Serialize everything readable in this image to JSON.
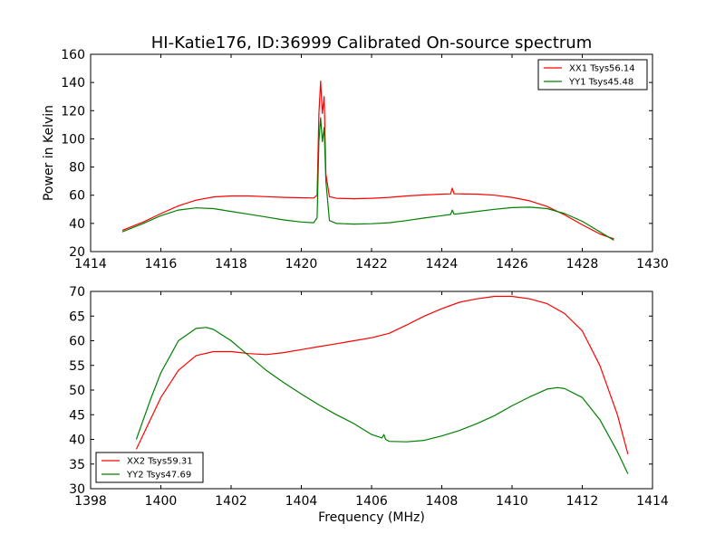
{
  "colors": {
    "xx": "#ff0000",
    "yy": "#008000",
    "frame": "#000000",
    "background": "#ffffff"
  },
  "chart_data": [
    {
      "type": "line",
      "title": "HI-Katie176, ID:36999 Calibrated On-source spectrum",
      "xlabel": "",
      "ylabel": "Power in Kelvin",
      "xlim": [
        1414,
        1430
      ],
      "ylim": [
        20,
        160
      ],
      "xticks": [
        1414,
        1416,
        1418,
        1420,
        1422,
        1424,
        1426,
        1428,
        1430
      ],
      "yticks": [
        20,
        40,
        60,
        80,
        100,
        120,
        140,
        160
      ],
      "grid": false,
      "legend_position": "top-right",
      "series": [
        {
          "name": "XX1 Tsys56.14",
          "color": "#ff0000",
          "points": [
            [
              1414.9,
              35
            ],
            [
              1415.5,
              41
            ],
            [
              1416,
              47
            ],
            [
              1416.5,
              52.5
            ],
            [
              1417,
              56.5
            ],
            [
              1417.5,
              58.8
            ],
            [
              1418,
              59.5
            ],
            [
              1418.5,
              59.5
            ],
            [
              1419,
              59
            ],
            [
              1419.5,
              58.5
            ],
            [
              1420,
              58.2
            ],
            [
              1420.35,
              58
            ],
            [
              1420.45,
              60
            ],
            [
              1420.5,
              118
            ],
            [
              1420.55,
              141
            ],
            [
              1420.6,
              118
            ],
            [
              1420.65,
              130
            ],
            [
              1420.7,
              75
            ],
            [
              1420.8,
              59
            ],
            [
              1421,
              57.8
            ],
            [
              1421.5,
              57.5
            ],
            [
              1422,
              57.8
            ],
            [
              1422.5,
              58.5
            ],
            [
              1423,
              59.5
            ],
            [
              1423.5,
              60.2
            ],
            [
              1424,
              60.8
            ],
            [
              1424.25,
              61
            ],
            [
              1424.3,
              65
            ],
            [
              1424.35,
              61
            ],
            [
              1424.5,
              61
            ],
            [
              1425,
              60.8
            ],
            [
              1425.5,
              60
            ],
            [
              1426,
              58.5
            ],
            [
              1426.5,
              56
            ],
            [
              1427,
              52
            ],
            [
              1427.5,
              46
            ],
            [
              1428,
              39
            ],
            [
              1428.5,
              32.5
            ],
            [
              1428.9,
              29
            ]
          ]
        },
        {
          "name": "YY1 Tsys45.48",
          "color": "#008000",
          "points": [
            [
              1414.9,
              34
            ],
            [
              1415.5,
              40
            ],
            [
              1416,
              45.5
            ],
            [
              1416.5,
              49.5
            ],
            [
              1417,
              51
            ],
            [
              1417.5,
              50.5
            ],
            [
              1418,
              48.5
            ],
            [
              1418.5,
              46.5
            ],
            [
              1419,
              44.5
            ],
            [
              1419.5,
              42.5
            ],
            [
              1420,
              41
            ],
            [
              1420.35,
              40.5
            ],
            [
              1420.45,
              44
            ],
            [
              1420.5,
              98
            ],
            [
              1420.55,
              115
            ],
            [
              1420.6,
              98
            ],
            [
              1420.65,
              108
            ],
            [
              1420.7,
              70
            ],
            [
              1420.8,
              42
            ],
            [
              1421,
              40
            ],
            [
              1421.5,
              39.5
            ],
            [
              1422,
              39.8
            ],
            [
              1422.5,
              40.5
            ],
            [
              1423,
              42
            ],
            [
              1423.5,
              43.8
            ],
            [
              1424,
              45.5
            ],
            [
              1424.25,
              46.3
            ],
            [
              1424.3,
              49.5
            ],
            [
              1424.35,
              46.5
            ],
            [
              1424.5,
              47
            ],
            [
              1425,
              48.5
            ],
            [
              1425.5,
              50
            ],
            [
              1426,
              51.2
            ],
            [
              1426.5,
              51.5
            ],
            [
              1427,
              50.5
            ],
            [
              1427.5,
              47
            ],
            [
              1428,
              41.5
            ],
            [
              1428.5,
              34
            ],
            [
              1428.9,
              28
            ]
          ]
        }
      ]
    },
    {
      "type": "line",
      "title": "",
      "xlabel": "Frequency (MHz)",
      "ylabel": "",
      "xlim": [
        1398,
        1414
      ],
      "ylim": [
        30,
        70
      ],
      "xticks": [
        1398,
        1400,
        1402,
        1404,
        1406,
        1408,
        1410,
        1412,
        1414
      ],
      "yticks": [
        30,
        35,
        40,
        45,
        50,
        55,
        60,
        65,
        70
      ],
      "grid": false,
      "legend_position": "bottom-left",
      "series": [
        {
          "name": "XX2 Tsys59.31",
          "color": "#ff0000",
          "points": [
            [
              1399.3,
              38
            ],
            [
              1399.7,
              44
            ],
            [
              1400,
              48.5
            ],
            [
              1400.5,
              54
            ],
            [
              1401,
              57
            ],
            [
              1401.5,
              57.8
            ],
            [
              1402,
              57.8
            ],
            [
              1402.5,
              57.4
            ],
            [
              1403,
              57.2
            ],
            [
              1403.5,
              57.6
            ],
            [
              1404,
              58.2
            ],
            [
              1404.5,
              58.8
            ],
            [
              1405,
              59.4
            ],
            [
              1405.5,
              60
            ],
            [
              1406,
              60.6
            ],
            [
              1406.5,
              61.5
            ],
            [
              1407,
              63.2
            ],
            [
              1407.5,
              65
            ],
            [
              1408,
              66.5
            ],
            [
              1408.5,
              67.8
            ],
            [
              1409,
              68.5
            ],
            [
              1409.5,
              69
            ],
            [
              1410,
              69
            ],
            [
              1410.5,
              68.5
            ],
            [
              1411,
              67.5
            ],
            [
              1411.5,
              65.5
            ],
            [
              1412,
              62
            ],
            [
              1412.5,
              55
            ],
            [
              1413,
              45
            ],
            [
              1413.3,
              37
            ]
          ]
        },
        {
          "name": "YY2 Tsys47.69",
          "color": "#008000",
          "points": [
            [
              1399.3,
              40
            ],
            [
              1399.7,
              48
            ],
            [
              1400,
              53.5
            ],
            [
              1400.5,
              60
            ],
            [
              1401,
              62.5
            ],
            [
              1401.3,
              62.7
            ],
            [
              1401.5,
              62.3
            ],
            [
              1402,
              60
            ],
            [
              1402.5,
              57
            ],
            [
              1403,
              54
            ],
            [
              1403.5,
              51.5
            ],
            [
              1404,
              49.2
            ],
            [
              1404.5,
              47
            ],
            [
              1405,
              45
            ],
            [
              1405.5,
              43.2
            ],
            [
              1406,
              41
            ],
            [
              1406.3,
              40.3
            ],
            [
              1406.35,
              41
            ],
            [
              1406.4,
              40
            ],
            [
              1406.5,
              39.6
            ],
            [
              1407,
              39.5
            ],
            [
              1407.5,
              39.8
            ],
            [
              1408,
              40.7
            ],
            [
              1408.5,
              41.8
            ],
            [
              1409,
              43.2
            ],
            [
              1409.5,
              44.8
            ],
            [
              1410,
              46.8
            ],
            [
              1410.5,
              48.6
            ],
            [
              1411,
              50.2
            ],
            [
              1411.3,
              50.5
            ],
            [
              1411.5,
              50.3
            ],
            [
              1412,
              48.5
            ],
            [
              1412.5,
              44
            ],
            [
              1413,
              37.5
            ],
            [
              1413.3,
              33
            ]
          ]
        }
      ]
    }
  ]
}
